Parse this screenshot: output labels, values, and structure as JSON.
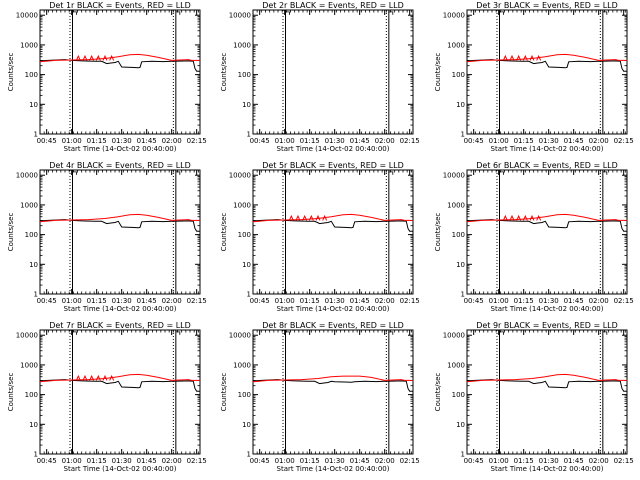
{
  "chart_data": [
    {
      "type": "line",
      "title": "Det 1r BLACK = Events, RED = LLD",
      "ylabel": "Counts/sec",
      "xlabel": "Start Time (14-Oct-02 00:40:00)",
      "flat": false,
      "spikes": true,
      "drop": true,
      "empty": false
    },
    {
      "type": "line",
      "title": "Det 2r BLACK = Events, RED = LLD",
      "ylabel": "Counts/sec",
      "xlabel": "Start Time (14-Oct-02 00:40:00)",
      "flat": false,
      "spikes": false,
      "drop": false,
      "empty": true
    },
    {
      "type": "line",
      "title": "Det 3r BLACK = Events, RED = LLD",
      "ylabel": "Counts/sec",
      "xlabel": "Start Time (14-Oct-02 00:40:00)",
      "flat": false,
      "spikes": true,
      "drop": true,
      "empty": false
    },
    {
      "type": "line",
      "title": "Det 4r BLACK = Events, RED = LLD",
      "ylabel": "Counts/sec",
      "xlabel": "Start Time (14-Oct-02 00:40:00)",
      "flat": false,
      "spikes": false,
      "drop": true,
      "empty": false
    },
    {
      "type": "line",
      "title": "Det 5r BLACK = Events, RED = LLD",
      "ylabel": "Counts/sec",
      "xlabel": "Start Time (14-Oct-02 00:40:00)",
      "flat": false,
      "spikes": true,
      "drop": true,
      "empty": false
    },
    {
      "type": "line",
      "title": "Det 6r BLACK = Events, RED = LLD",
      "ylabel": "Counts/sec",
      "xlabel": "Start Time (14-Oct-02 00:40:00)",
      "flat": false,
      "spikes": true,
      "drop": true,
      "empty": false
    },
    {
      "type": "line",
      "title": "Det 7r BLACK = Events, RED = LLD",
      "ylabel": "Counts/sec",
      "xlabel": "Start Time (14-Oct-02 00:40:00)",
      "flat": false,
      "spikes": true,
      "drop": true,
      "empty": false
    },
    {
      "type": "line",
      "title": "Det 8r BLACK = Events, RED = LLD",
      "ylabel": "Counts/sec",
      "xlabel": "Start Time (14-Oct-02 00:40:00)",
      "flat": true,
      "spikes": false,
      "drop": true,
      "empty": false
    },
    {
      "type": "line",
      "title": "Det 9r BLACK = Events, RED = LLD",
      "ylabel": "Counts/sec",
      "xlabel": "Start Time (14-Oct-02 00:40:00)",
      "flat": false,
      "spikes": false,
      "drop": true,
      "empty": false
    }
  ],
  "shared": {
    "y_scale": "log",
    "ylim": [
      1,
      15000
    ],
    "y_ticks": [
      1,
      10,
      100,
      1000,
      10000
    ],
    "y_tick_labels": [
      "1",
      "10",
      "100",
      "1000",
      "10000"
    ],
    "x_range_minutes": [
      41,
      137
    ],
    "x_ticks": [
      45,
      60,
      75,
      90,
      105,
      120,
      135
    ],
    "x_tick_labels": [
      "00:45",
      "01:00",
      "01:15",
      "01:30",
      "01:45",
      "02:00",
      "02:15"
    ],
    "dotted_lines": [
      59,
      121
    ],
    "solid_lines": [
      60.5,
      122.5
    ],
    "events": [
      [
        41,
        290
      ],
      [
        46,
        300
      ],
      [
        51,
        310
      ],
      [
        56,
        320
      ],
      [
        60,
        300
      ],
      [
        66,
        290
      ],
      [
        71,
        285
      ],
      [
        74,
        280
      ],
      [
        78,
        280
      ],
      [
        81,
        235
      ],
      [
        83,
        245
      ],
      [
        86,
        255
      ],
      [
        88,
        280
      ],
      [
        90,
        180
      ],
      [
        96,
        175
      ],
      [
        100,
        170
      ],
      [
        101,
        175
      ],
      [
        102,
        270
      ],
      [
        108,
        280
      ],
      [
        115,
        275
      ],
      [
        120,
        280
      ],
      [
        125,
        285
      ],
      [
        130,
        290
      ],
      [
        133,
        280
      ],
      [
        134,
        160
      ],
      [
        135,
        130
      ],
      [
        137,
        130
      ]
    ],
    "lld": [
      [
        41,
        270
      ],
      [
        50,
        300
      ],
      [
        60,
        310
      ],
      [
        70,
        320
      ],
      [
        80,
        350
      ],
      [
        88,
        400
      ],
      [
        95,
        470
      ],
      [
        100,
        480
      ],
      [
        105,
        450
      ],
      [
        112,
        380
      ],
      [
        120,
        300
      ],
      [
        125,
        310
      ],
      [
        130,
        320
      ],
      [
        132,
        300
      ],
      [
        134,
        300
      ],
      [
        137,
        300
      ]
    ],
    "spike_times": [
      64,
      68,
      72,
      76,
      80,
      84
    ],
    "colors": {
      "events": "#000000",
      "lld": "#ff0000"
    }
  }
}
